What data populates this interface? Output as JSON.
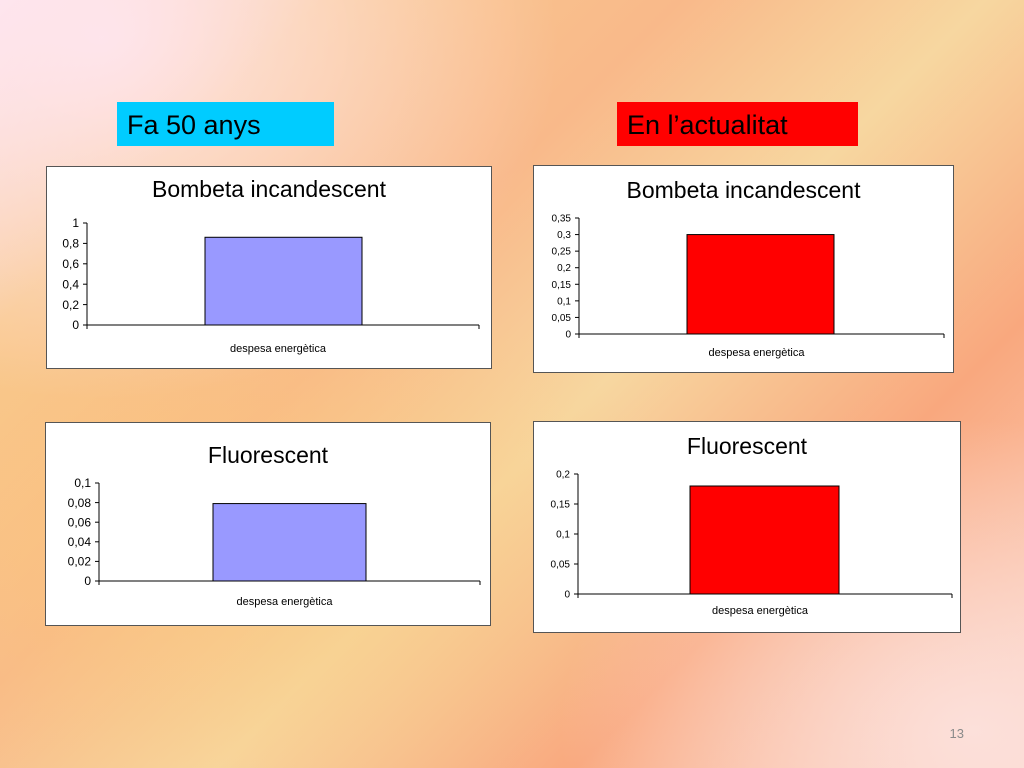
{
  "slide": {
    "left_label": "Fa 50 anys",
    "right_label": "En l’actualitat",
    "page_number": "13",
    "colors": {
      "left_label_bg": "#00ccff",
      "right_label_bg": "#ff0000",
      "bar_old": "#9999ff",
      "bar_new": "#ff0000"
    }
  },
  "chart_data": [
    {
      "id": "chart-tl",
      "type": "bar",
      "title": "Bombeta incandescent",
      "categories": [
        "despesa energètica"
      ],
      "values": [
        0.86
      ],
      "ylim": [
        0,
        1
      ],
      "yticks": [
        "0",
        "0,2",
        "0,4",
        "0,6",
        "0,8",
        "1"
      ],
      "tickvals": [
        0,
        0.2,
        0.4,
        0.6,
        0.8,
        1
      ],
      "bar_color": "#9999ff",
      "grid": false,
      "legend": "none"
    },
    {
      "id": "chart-tr",
      "type": "bar",
      "title": "Bombeta incandescent",
      "categories": [
        "despesa energètica"
      ],
      "values": [
        0.3
      ],
      "ylim": [
        0,
        0.35
      ],
      "yticks": [
        "0",
        "0,05",
        "0,1",
        "0,15",
        "0,2",
        "0,25",
        "0,3",
        "0,35"
      ],
      "tickvals": [
        0,
        0.05,
        0.1,
        0.15,
        0.2,
        0.25,
        0.3,
        0.35
      ],
      "bar_color": "#ff0000",
      "grid": false,
      "legend": "none"
    },
    {
      "id": "chart-bl",
      "type": "bar",
      "title": "Fluorescent",
      "categories": [
        "despesa energètica"
      ],
      "values": [
        0.079
      ],
      "ylim": [
        0,
        0.1
      ],
      "yticks": [
        "0",
        "0,02",
        "0,04",
        "0,06",
        "0,08",
        "0,1"
      ],
      "tickvals": [
        0,
        0.02,
        0.04,
        0.06,
        0.08,
        0.1
      ],
      "bar_color": "#9999ff",
      "grid": false,
      "legend": "none"
    },
    {
      "id": "chart-br",
      "type": "bar",
      "title": "Fluorescent",
      "categories": [
        "despesa energètica"
      ],
      "values": [
        0.18
      ],
      "ylim": [
        0,
        0.2
      ],
      "yticks": [
        "0",
        "0,05",
        "0,1",
        "0,15",
        "0,2"
      ],
      "tickvals": [
        0,
        0.05,
        0.1,
        0.15,
        0.2
      ],
      "bar_color": "#ff0000",
      "grid": false,
      "legend": "none"
    }
  ]
}
